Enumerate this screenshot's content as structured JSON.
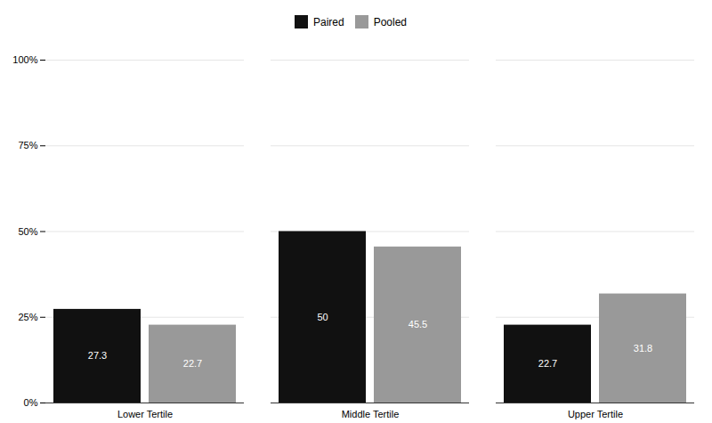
{
  "chart_data": {
    "type": "bar",
    "categories": [
      "Lower Tertile",
      "Middle Tertile",
      "Upper Tertile"
    ],
    "series": [
      {
        "name": "Paired",
        "color": "#111111",
        "values": [
          27.3,
          50,
          22.7
        ]
      },
      {
        "name": "Pooled",
        "color": "#999999",
        "values": [
          22.7,
          45.5,
          31.8
        ]
      }
    ],
    "ylim": [
      0,
      100
    ],
    "yticks": [
      {
        "value": 0,
        "label": "0%"
      },
      {
        "value": 25,
        "label": "25%"
      },
      {
        "value": 50,
        "label": "50%"
      },
      {
        "value": 75,
        "label": "75%"
      },
      {
        "value": 100,
        "label": "100%"
      }
    ],
    "grid": true,
    "legend": "top",
    "data_labels": true
  }
}
